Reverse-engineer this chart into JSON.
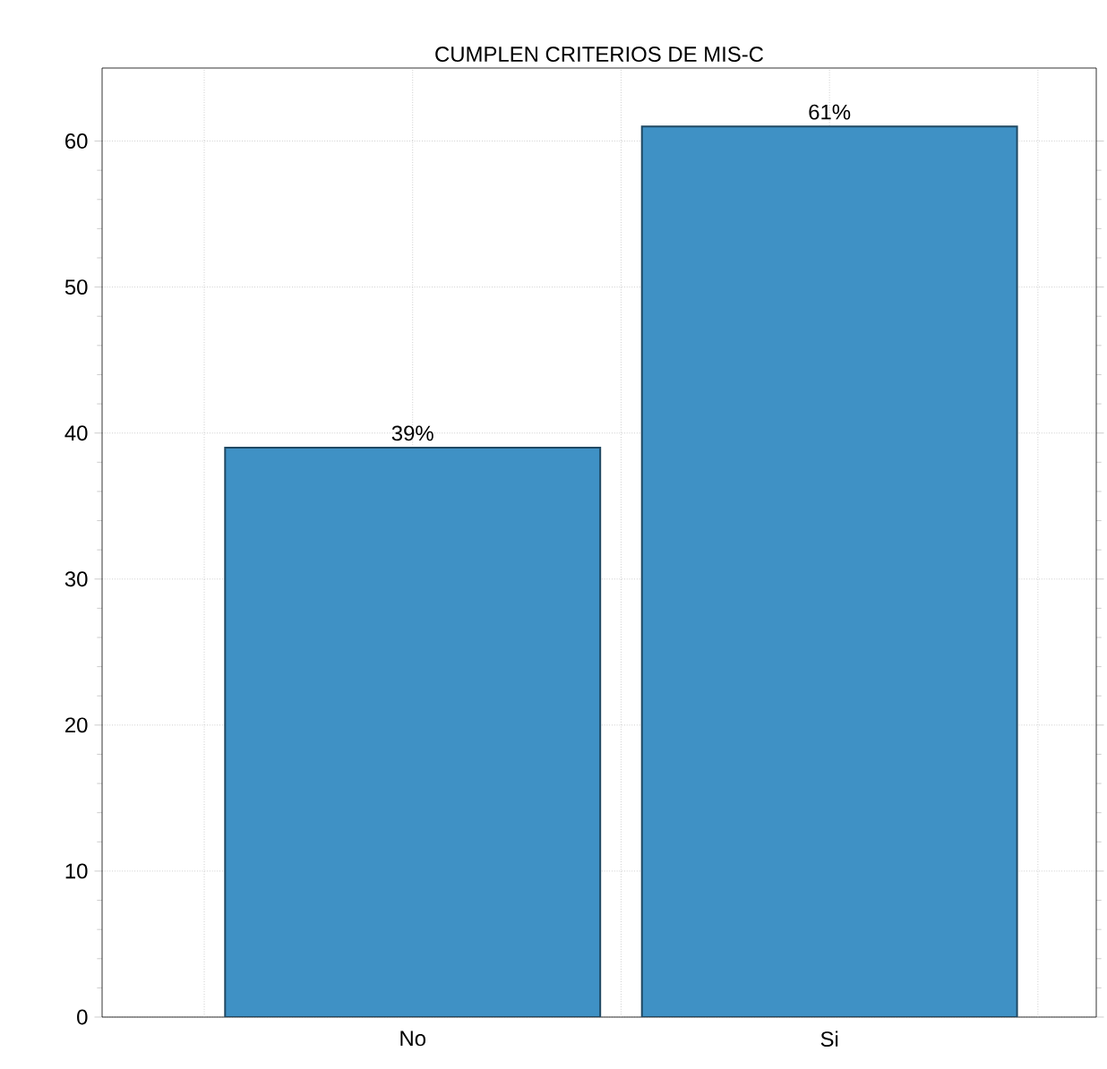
{
  "chart_data": {
    "type": "bar",
    "title": "CUMPLEN CRITERIOS DE MIS-C",
    "categories": [
      "No",
      "Si"
    ],
    "values": [
      39,
      61
    ],
    "value_labels": [
      "39%",
      "61%"
    ],
    "color": "#3f91c5",
    "ylim": [
      0,
      65
    ],
    "yticks": [
      0,
      10,
      20,
      30,
      40,
      50,
      60
    ],
    "grid": true
  }
}
